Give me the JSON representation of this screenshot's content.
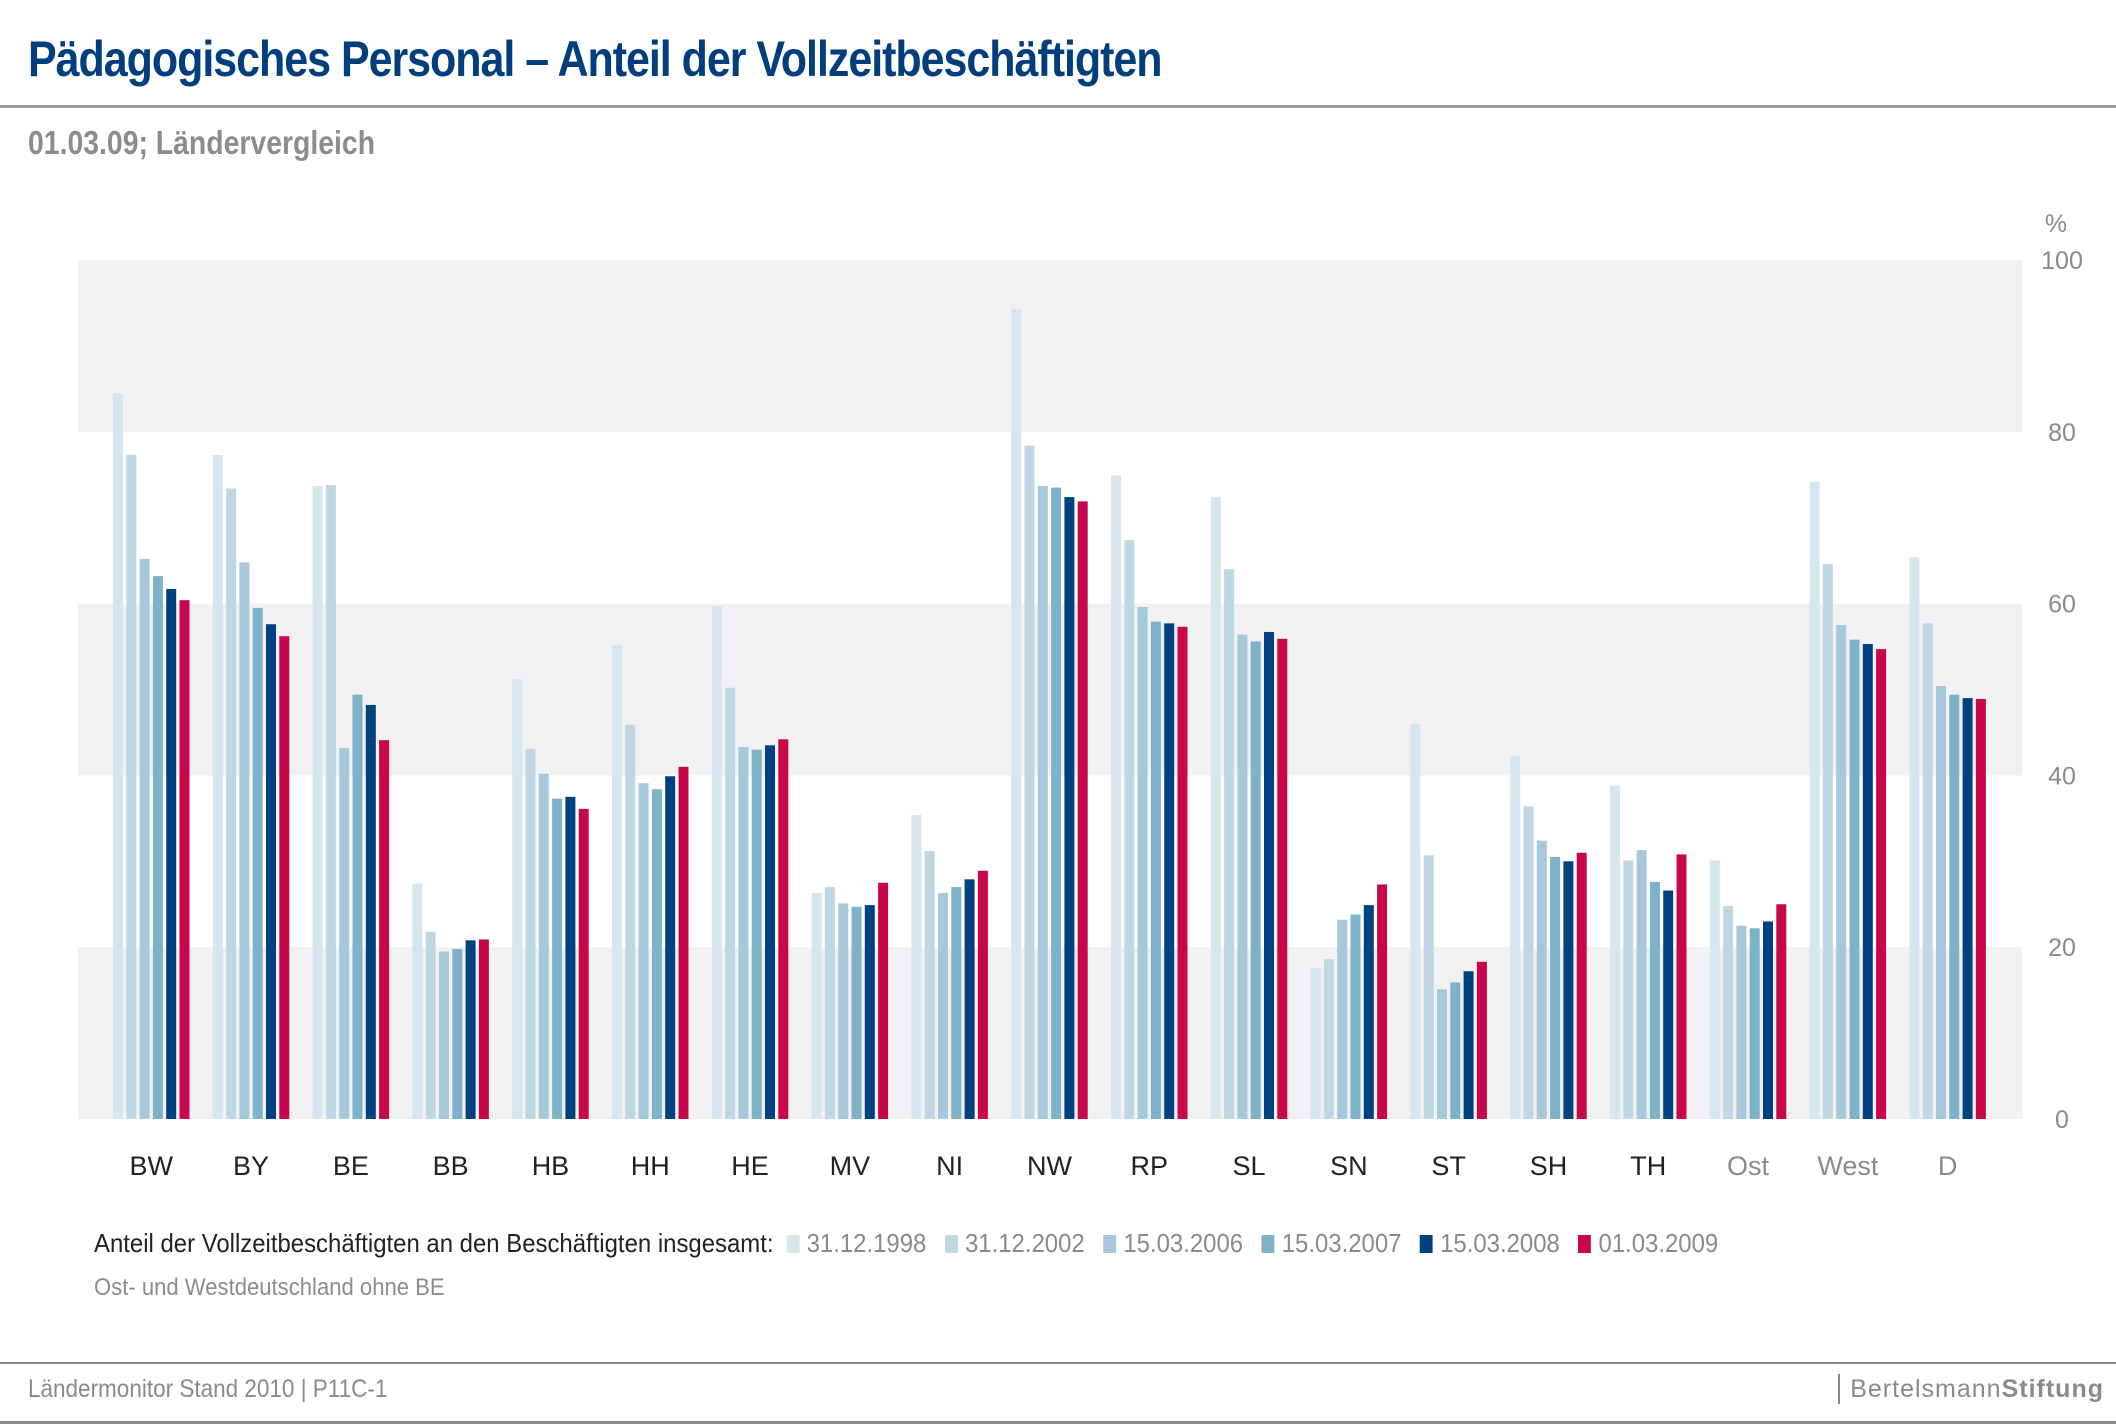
{
  "header": {
    "title": "Pädagogisches Personal – Anteil der Vollzeitbeschäftigten",
    "subtitle": "01.03.09; Ländervergleich"
  },
  "colors": {
    "title": "#003e7e",
    "band": "#f1f1f3",
    "series": [
      "#d6e6ef",
      "#bfd7e3",
      "#a6c8da",
      "#7eb1ca",
      "#00427f",
      "#c8074a"
    ]
  },
  "chart_data": {
    "type": "bar",
    "title": "Pädagogisches Personal – Anteil der Vollzeitbeschäftigten",
    "subtitle": "01.03.09; Ländervergleich",
    "xlabel": "",
    "ylabel": "%",
    "ylim": [
      0,
      100
    ],
    "yticks": [
      0,
      20,
      40,
      60,
      80,
      100
    ],
    "y_axis_position": "right",
    "grid": "alternating horizontal bands",
    "categories": [
      "BW",
      "BY",
      "BE",
      "BB",
      "HB",
      "HH",
      "HE",
      "MV",
      "NI",
      "NW",
      "RP",
      "SL",
      "SN",
      "ST",
      "SH",
      "TH",
      "Ost",
      "West",
      "D"
    ],
    "muted_categories": [
      "Ost",
      "West",
      "D"
    ],
    "legend_title": "Anteil der Vollzeitbeschäftigten an den Beschäftigten insgesamt:",
    "legend_position": "bottom",
    "series": [
      {
        "name": "31.12.1998",
        "values": [
          84.5,
          77.3,
          73.7,
          27.4,
          51.2,
          55.2,
          59.7,
          26.3,
          35.4,
          94.3,
          74.9,
          72.4,
          17.6,
          46.0,
          42.3,
          38.8,
          30.1,
          74.2,
          65.4
        ]
      },
      {
        "name": "31.12.2002",
        "values": [
          77.3,
          73.4,
          73.8,
          21.8,
          43.1,
          45.9,
          50.2,
          27.0,
          31.2,
          78.4,
          67.4,
          64.0,
          18.6,
          30.7,
          36.4,
          30.1,
          24.8,
          64.6,
          57.7
        ]
      },
      {
        "name": "15.03.2006",
        "values": [
          65.2,
          64.8,
          43.2,
          19.5,
          40.2,
          39.1,
          43.3,
          25.1,
          26.3,
          73.7,
          59.6,
          56.4,
          23.2,
          15.1,
          32.4,
          31.3,
          22.5,
          57.5,
          50.4
        ]
      },
      {
        "name": "15.03.2007",
        "values": [
          63.2,
          59.5,
          49.4,
          19.8,
          37.3,
          38.4,
          43.0,
          24.7,
          27.0,
          73.5,
          57.9,
          55.6,
          23.8,
          15.9,
          30.5,
          27.6,
          22.2,
          55.8,
          49.4
        ]
      },
      {
        "name": "15.03.2008",
        "values": [
          61.7,
          57.6,
          48.2,
          20.8,
          37.5,
          39.9,
          43.5,
          24.9,
          27.9,
          72.4,
          57.7,
          56.7,
          24.9,
          17.2,
          30.0,
          26.6,
          23.0,
          55.3,
          49.0
        ]
      },
      {
        "name": "01.03.2009",
        "values": [
          60.4,
          56.2,
          44.1,
          20.9,
          36.1,
          41.0,
          44.2,
          27.5,
          28.9,
          71.9,
          57.3,
          55.9,
          27.3,
          18.3,
          31.0,
          30.8,
          25.0,
          54.7,
          48.9
        ]
      }
    ],
    "notes": [
      "Ost- und Westdeutschland ohne BE"
    ]
  },
  "legend": {
    "title": "Anteil der Vollzeitbeschäftigten an den Beschäftigten insgesamt:",
    "items": [
      "31.12.1998",
      "31.12.2002",
      "15.03.2006",
      "15.03.2007",
      "15.03.2008",
      "01.03.2009"
    ]
  },
  "note": "Ost- und Westdeutschland ohne BE",
  "footer": {
    "source": "Ländermonitor Stand 2010 | P11C-1",
    "logo_regular": "Bertelsmann",
    "logo_bold": "Stiftung"
  }
}
